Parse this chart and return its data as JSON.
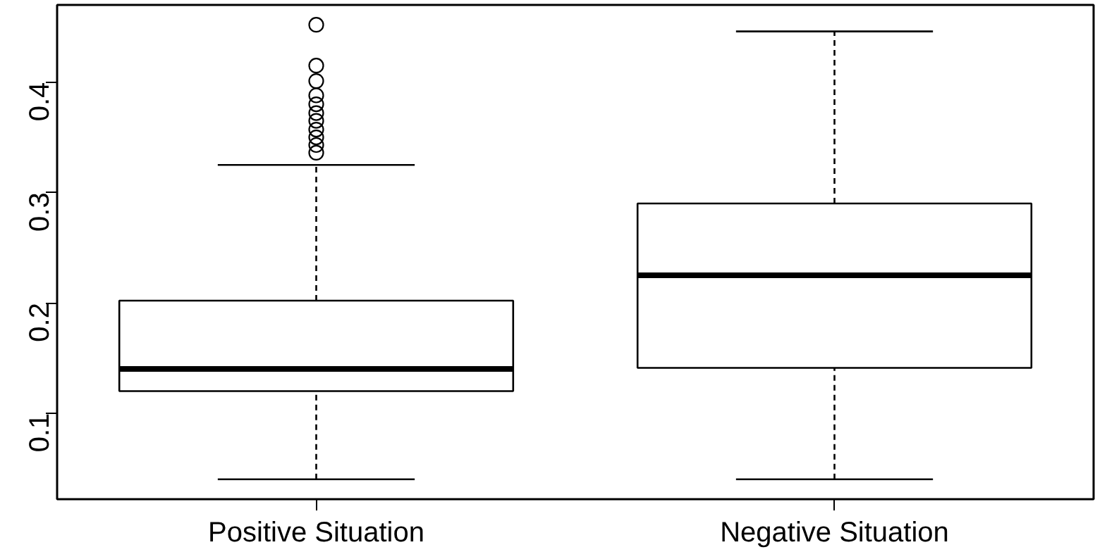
{
  "chart_data": {
    "type": "box",
    "categories": [
      "Positive Situation",
      "Negative Situation"
    ],
    "boxes": [
      {
        "low": 0.04,
        "q1": 0.12,
        "median": 0.14,
        "q3": 0.202,
        "high": 0.325,
        "outliers": [
          0.452,
          0.415,
          0.401,
          0.388,
          0.38,
          0.372,
          0.365,
          0.357,
          0.35,
          0.343,
          0.336
        ]
      },
      {
        "low": 0.04,
        "q1": 0.141,
        "median": 0.225,
        "q3": 0.29,
        "high": 0.446
      }
    ],
    "ylim": [
      0.022,
      0.47
    ],
    "yticks": [
      0.1,
      0.2,
      0.3,
      0.4
    ],
    "grid": false
  }
}
